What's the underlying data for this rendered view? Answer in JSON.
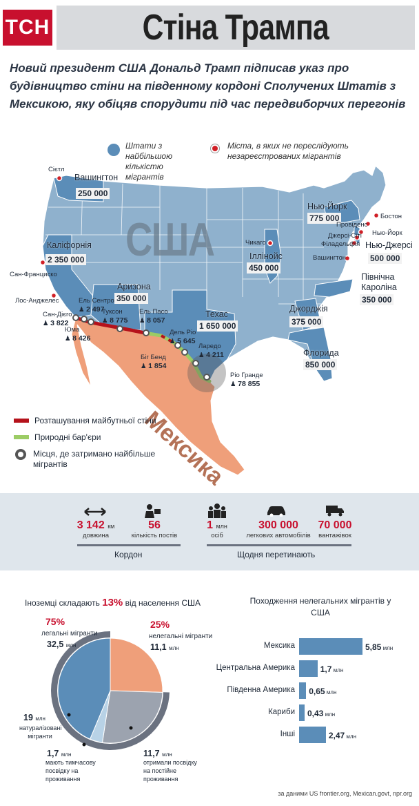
{
  "header": {
    "logo": "ТСН",
    "title": "Стіна Трампа",
    "subtitle": "Новий президент США Дональд Трамп підписав указ про будівництво стіни на південному кордоні Сполучених Штатів з Мексикою, яку обіцяв спорудити під час передвиборчих перегонів"
  },
  "map": {
    "legend_states": "Штати з найбільшою кількістю мігрантів",
    "legend_cities": "Міста, в яких не переслідують незареєстрованих мігрантів",
    "country_usa": "США",
    "country_mexico": "Мексика",
    "states": [
      {
        "name": "Вашингтон",
        "value": "250 000"
      },
      {
        "name": "Каліфорнія",
        "value": "2 350 000"
      },
      {
        "name": "Аризона",
        "value": "350 000"
      },
      {
        "name": "Техас",
        "value": "1 650 000"
      },
      {
        "name": "Іллінойс",
        "value": "450 000"
      },
      {
        "name": "Нью-Йорк",
        "value": "775 000"
      },
      {
        "name": "Нью-Джерсі",
        "value": "500 000"
      },
      {
        "name": "Північна Кароліна",
        "value": "350 000"
      },
      {
        "name": "Джорджія",
        "value": "375 000"
      },
      {
        "name": "Флорида",
        "value": "850 000"
      }
    ],
    "cities": [
      "Сієтл",
      "Сан-Франциско",
      "Лос-Анджелес",
      "Чикаго",
      "Бостон",
      "Провіденс",
      "Нью-Йорк",
      "Джерсі-Сіті",
      "Філадельфія",
      "Вашингтон"
    ],
    "border_points": [
      {
        "name": "Сан-Дієго",
        "count": "3 822"
      },
      {
        "name": "Ель Сентро",
        "count": "2 497"
      },
      {
        "name": "Юма",
        "count": "8 426"
      },
      {
        "name": "Туксон",
        "count": "8 775"
      },
      {
        "name": "Ель Пасо",
        "count": "8 057"
      },
      {
        "name": "Біг Бенд",
        "count": "1 854"
      },
      {
        "name": "Дель Ріо",
        "count": "5 645"
      },
      {
        "name": "Ларедо",
        "count": "4 211"
      },
      {
        "name": "Ріо Гранде",
        "count": "78 855"
      }
    ],
    "legend_wall": "Розташування майбутньої стіни",
    "legend_natural": "Природні бар'єри",
    "legend_detained": "Місця, де затримано найбільше мігрантів",
    "colors": {
      "wall": "#b5121b",
      "natural": "#9ccc65",
      "states_high": "#5b8db8",
      "states": "#8fb1cd",
      "mexico": "#ef9f7a"
    }
  },
  "stats": {
    "length_value": "3 142",
    "length_unit": "км",
    "length_label": "довжина",
    "posts_value": "56",
    "posts_label": "кількість постів",
    "people_value": "1",
    "people_unit": "млн",
    "people_label": "осіб",
    "cars_value": "300 000",
    "cars_label": "легкових автомобілів",
    "trucks_value": "70 000",
    "trucks_label": "вантажівок",
    "group_border": "Кордон",
    "group_daily": "Щодня перетинають"
  },
  "chart_data": [
    {
      "type": "pie",
      "title": "Іноземці складають 13% від населення США",
      "title_prefix": "Іноземці складають",
      "title_highlight": "13%",
      "title_suffix": "від населення США",
      "slices": [
        {
          "label": "легальні мігранти",
          "pct": "75%",
          "value": 32.5,
          "value_text": "32,5",
          "unit": "млн"
        },
        {
          "label": "нелегальні мігранти",
          "pct": "25%",
          "value": 11.1,
          "value_text": "11,1",
          "unit": "млн"
        }
      ],
      "sub_slices": [
        {
          "label": "натуралізовані мігранти",
          "value": 19,
          "value_text": "19",
          "unit": "млн"
        },
        {
          "label": "мають тимчасову посвідку на проживання",
          "value": 1.7,
          "value_text": "1,7",
          "unit": "млн"
        },
        {
          "label": "отримали посвідку на постійне проживання",
          "value": 11.7,
          "value_text": "11,7",
          "unit": "млн"
        }
      ]
    },
    {
      "type": "bar",
      "title": "Походження нелегальних мігрантів у США",
      "categories": [
        "Мексика",
        "Центральна Америка",
        "Південна Америка",
        "Кариби",
        "Інші"
      ],
      "values": [
        5.85,
        1.7,
        0.65,
        0.43,
        2.47
      ],
      "value_labels": [
        "5,85",
        "1,7",
        "0,65",
        "0,43",
        "2,47"
      ],
      "unit": "млн",
      "color": "#5b8db8"
    }
  ],
  "source": "за даними US frontier.org, Mexican.govt, npr.org"
}
